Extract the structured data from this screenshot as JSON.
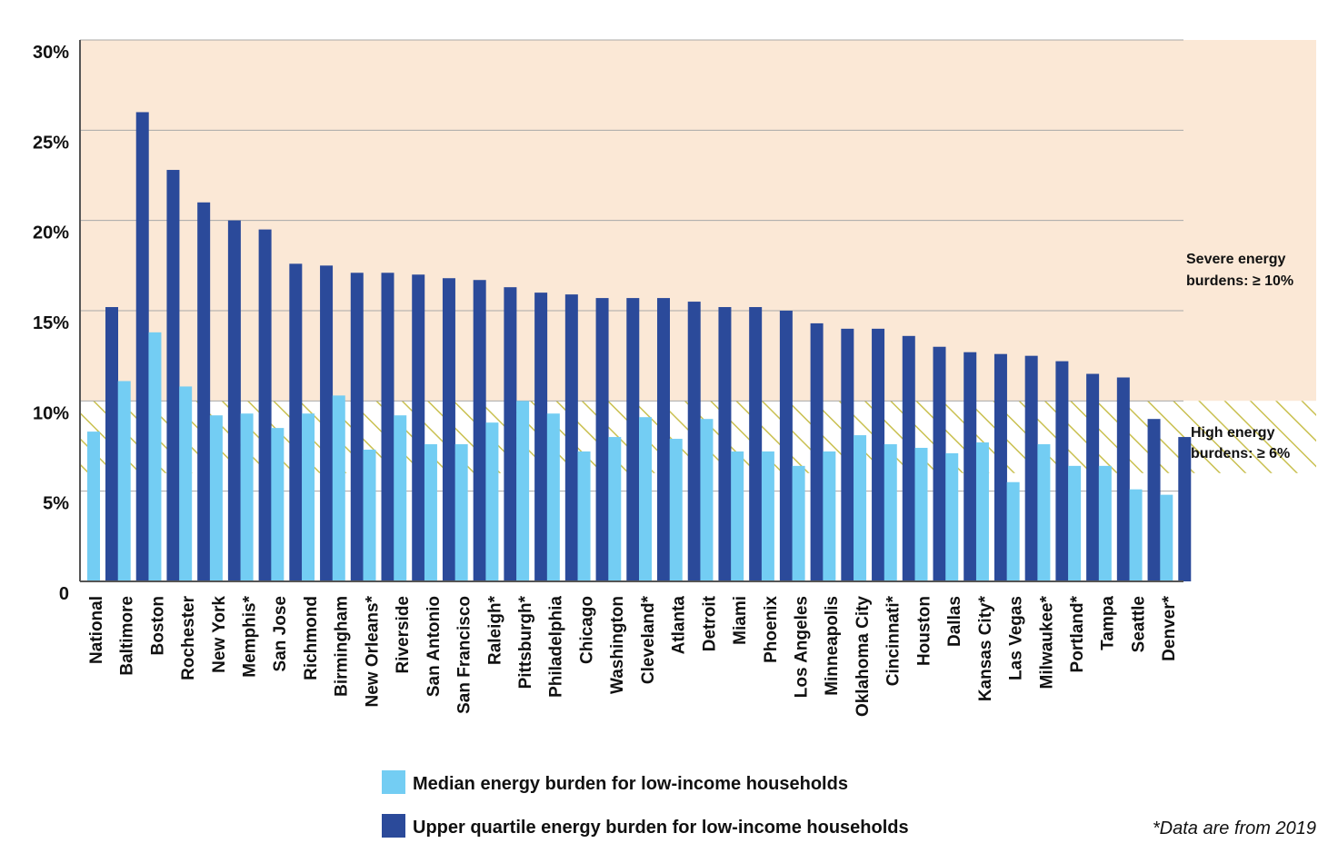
{
  "colors": {
    "median": "#73cdf3",
    "upper": "#2b4a9a",
    "severe_zone": "#fbe8d6",
    "high_zone_hatch": "#c9c050",
    "grid": "#a8a8a8",
    "axis": "#555555"
  },
  "chart_data": {
    "type": "bar",
    "title": "",
    "xlabel": "",
    "ylabel": "",
    "ylim": [
      0,
      30
    ],
    "y_ticks": [
      {
        "value": 0,
        "label": "0"
      },
      {
        "value": 5,
        "label": "5%"
      },
      {
        "value": 10,
        "label": "10%"
      },
      {
        "value": 15,
        "label": "15%"
      },
      {
        "value": 20,
        "label": "20%"
      },
      {
        "value": 25,
        "label": "25%"
      },
      {
        "value": 30,
        "label": "30%"
      }
    ],
    "grid": true,
    "legend_position": "bottom",
    "categories": [
      "National",
      "Baltimore",
      "Boston",
      "Rochester",
      "New York",
      "Memphis*",
      "San Jose",
      "Richmond",
      "Birmingham",
      "New Orleans*",
      "Riverside",
      "San Antonio",
      "San Francisco",
      "Raleigh*",
      "Pittsburgh*",
      "Philadelphia",
      "Chicago",
      "Washington",
      "Cleveland*",
      "Atlanta",
      "Detroit",
      "Miami",
      "Phoenix",
      "Los Angeles",
      "Minneapolis",
      "Oklahoma City",
      "Cincinnati*",
      "Houston",
      "Dallas",
      "Kansas City*",
      "Las Vegas",
      "Milwaukee*",
      "Portland*",
      "Tampa",
      "Seattle",
      "Denver*"
    ],
    "series": [
      {
        "name": "Median energy burden for low-income households",
        "color_key": "median",
        "values": [
          8.3,
          11.1,
          13.8,
          10.8,
          9.2,
          9.3,
          8.5,
          9.3,
          10.3,
          7.3,
          9.2,
          7.6,
          7.6,
          8.8,
          10.0,
          9.3,
          7.2,
          8.0,
          9.1,
          7.9,
          9.0,
          7.2,
          7.2,
          6.4,
          7.2,
          8.1,
          7.6,
          7.4,
          7.1,
          7.7,
          5.5,
          7.6,
          6.4,
          6.4,
          5.1,
          4.8
        ]
      },
      {
        "name": "Upper quartile energy burden for low-income households",
        "color_key": "upper",
        "values": [
          15.2,
          26.0,
          22.8,
          21.0,
          20.0,
          19.5,
          17.6,
          17.5,
          17.1,
          17.1,
          17.0,
          16.8,
          16.7,
          16.3,
          16.0,
          15.9,
          15.7,
          15.7,
          15.7,
          15.5,
          15.2,
          15.2,
          15.0,
          14.3,
          14.0,
          14.0,
          13.6,
          13.0,
          12.7,
          12.6,
          12.5,
          12.2,
          11.5,
          11.3,
          9.0,
          8.0
        ]
      }
    ],
    "zones": [
      {
        "label_lines": [
          "Severe energy",
          "burdens: ≥ 10%"
        ],
        "from": 10,
        "to": 30,
        "fill_key": "severe_zone"
      },
      {
        "label_lines": [
          "High energy",
          "burdens: ≥ 6%"
        ],
        "from": 6,
        "to": 10,
        "fill_key": "high_zone_hatch"
      }
    ]
  },
  "legend": [
    {
      "label": "Median energy burden for low-income households",
      "color_key": "median"
    },
    {
      "label": "Upper quartile energy burden for low-income households",
      "color_key": "upper"
    }
  ],
  "footnote": "*Data are from 2019"
}
